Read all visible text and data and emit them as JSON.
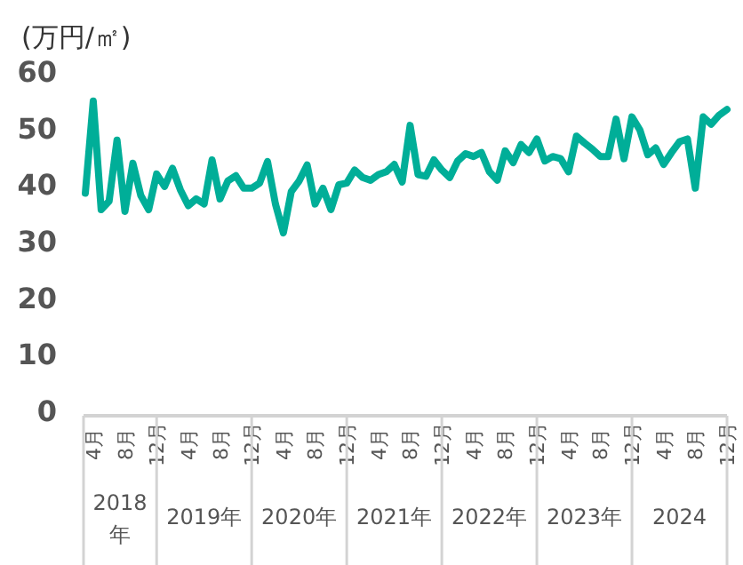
{
  "chart_data": {
    "type": "line",
    "ylabel": "(万円/㎡)",
    "x": [
      "2018-03",
      "2018-04",
      "2018-05",
      "2018-06",
      "2018-07",
      "2018-08",
      "2018-09",
      "2018-10",
      "2018-11",
      "2018-12",
      "2019-01",
      "2019-02",
      "2019-03",
      "2019-04",
      "2019-05",
      "2019-06",
      "2019-07",
      "2019-08",
      "2019-09",
      "2019-10",
      "2019-11",
      "2019-12",
      "2020-01",
      "2020-02",
      "2020-03",
      "2020-04",
      "2020-05",
      "2020-06",
      "2020-07",
      "2020-08",
      "2020-09",
      "2020-10",
      "2020-11",
      "2020-12",
      "2021-01",
      "2021-02",
      "2021-03",
      "2021-04",
      "2021-05",
      "2021-06",
      "2021-07",
      "2021-08",
      "2021-09",
      "2021-10",
      "2021-11",
      "2021-12",
      "2022-01",
      "2022-02",
      "2022-03",
      "2022-04",
      "2022-05",
      "2022-06",
      "2022-07",
      "2022-08",
      "2022-09",
      "2022-10",
      "2022-11",
      "2022-12",
      "2023-01",
      "2023-02",
      "2023-03",
      "2023-04",
      "2023-05",
      "2023-06",
      "2023-07",
      "2023-08",
      "2023-09",
      "2023-10",
      "2023-11",
      "2023-12",
      "2024-01",
      "2024-02",
      "2024-03",
      "2024-04",
      "2024-05",
      "2024-06",
      "2024-07",
      "2024-08",
      "2024-09",
      "2024-10",
      "2024-11",
      "2024-12"
    ],
    "series": [
      {
        "color": "#00ae98",
        "values": [
          38.4,
          54.7,
          35.5,
          37,
          47.8,
          35.2,
          43.7,
          38,
          35.5,
          41.8,
          39.6,
          42.8,
          39,
          36.2,
          37.4,
          36.5,
          44.3,
          37.4,
          40.6,
          41.5,
          39.3,
          39.3,
          40.2,
          44,
          36.5,
          31.4,
          38.7,
          40.6,
          43.4,
          36.5,
          39.3,
          35.5,
          39.9,
          40.2,
          42.5,
          41.2,
          40.7,
          41.7,
          42.2,
          43.5,
          40.4,
          50.4,
          41.7,
          41.4,
          44.3,
          42.5,
          41.2,
          44.1,
          45.4,
          44.9,
          45.6,
          42.2,
          40.7,
          45.9,
          43.8,
          47,
          45.6,
          48,
          44.1,
          44.9,
          44.5,
          42.2,
          48.5,
          47.3,
          46.2,
          44.9,
          44.9,
          51.5,
          44.5,
          51.9,
          49.6,
          45.2,
          46.4,
          43.5,
          45.6,
          47.5,
          48,
          39.3,
          51.9,
          50.6,
          52.2,
          53.2
        ]
      }
    ],
    "xlim": [
      "2018-03",
      "2024-12"
    ],
    "ylim": [
      0,
      60
    ],
    "yticks": [
      0,
      10,
      20,
      30,
      40,
      50,
      60
    ],
    "xticks": [
      {
        "value": "2018-04",
        "label": "4月"
      },
      {
        "value": "2018-08",
        "label": "8月"
      },
      {
        "value": "2018-12",
        "label": "12月"
      },
      {
        "value": "2019-04",
        "label": "4月"
      },
      {
        "value": "2019-08",
        "label": "8月"
      },
      {
        "value": "2019-12",
        "label": "12月"
      },
      {
        "value": "2020-04",
        "label": "4月"
      },
      {
        "value": "2020-08",
        "label": "8月"
      },
      {
        "value": "2020-12",
        "label": "12月"
      },
      {
        "value": "2021-04",
        "label": "4月"
      },
      {
        "value": "2021-08",
        "label": "8月"
      },
      {
        "value": "2021-12",
        "label": "12月"
      },
      {
        "value": "2022-04",
        "label": "4月"
      },
      {
        "value": "2022-08",
        "label": "8月"
      },
      {
        "value": "2022-12",
        "label": "12月"
      },
      {
        "value": "2023-04",
        "label": "4月"
      },
      {
        "value": "2023-08",
        "label": "8月"
      },
      {
        "value": "2023-12",
        "label": "12月"
      },
      {
        "value": "2024-04",
        "label": "4月"
      },
      {
        "value": "2024-08",
        "label": "8月"
      },
      {
        "value": "2024-12",
        "label": "12月"
      }
    ],
    "annotations": [
      "2018年",
      "2019年",
      "2020年",
      "2021年",
      "2022年",
      "2023年",
      "2024"
    ],
    "line_style": "solid"
  }
}
